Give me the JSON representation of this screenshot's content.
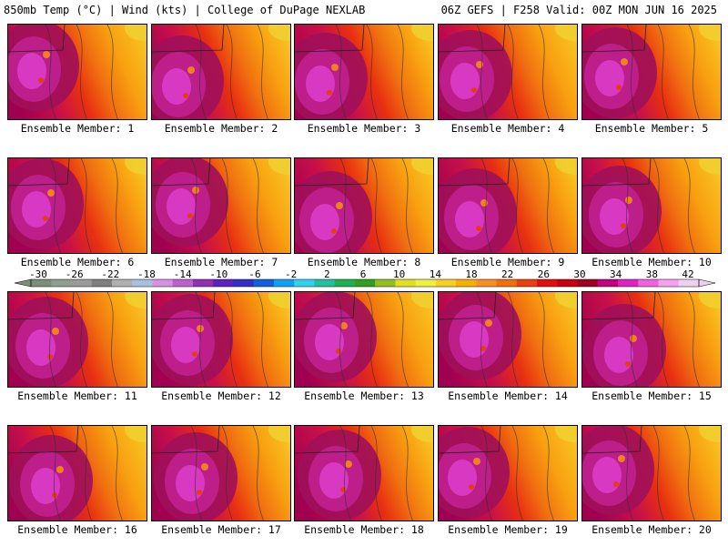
{
  "header": {
    "left": "850mb Temp (°C) | Wind (kts) | College of DuPage NEXLAB",
    "right": "06Z GEFS | F258 Valid: 00Z MON JUN 16 2025"
  },
  "members": [
    {
      "label": "Ensemble Member: 1"
    },
    {
      "label": "Ensemble Member: 2"
    },
    {
      "label": "Ensemble Member: 3"
    },
    {
      "label": "Ensemble Member: 4"
    },
    {
      "label": "Ensemble Member: 5"
    },
    {
      "label": "Ensemble Member: 6"
    },
    {
      "label": "Ensemble Member: 7"
    },
    {
      "label": "Ensemble Member: 8"
    },
    {
      "label": "Ensemble Member: 9"
    },
    {
      "label": "Ensemble Member: 10"
    },
    {
      "label": "Ensemble Member: 11"
    },
    {
      "label": "Ensemble Member: 12"
    },
    {
      "label": "Ensemble Member: 13"
    },
    {
      "label": "Ensemble Member: 14"
    },
    {
      "label": "Ensemble Member: 15"
    },
    {
      "label": "Ensemble Member: 16"
    },
    {
      "label": "Ensemble Member: 17"
    },
    {
      "label": "Ensemble Member: 18"
    },
    {
      "label": "Ensemble Member: 19"
    },
    {
      "label": "Ensemble Member: 20"
    }
  ],
  "colorbar": {
    "ticks": [
      "-30",
      "-26",
      "-22",
      "-18",
      "-14",
      "-10",
      "-6",
      "-2",
      "2",
      "6",
      "10",
      "14",
      "18",
      "22",
      "26",
      "30",
      "34",
      "38",
      "42"
    ],
    "colors": [
      "#7a8e7a",
      "#8f9f8f",
      "#9a9a9a",
      "#7f7f7f",
      "#b0b0b0",
      "#a8c0e0",
      "#d890e0",
      "#c060d0",
      "#9030b0",
      "#6020c0",
      "#3030c8",
      "#1060e0",
      "#10a0f0",
      "#30d0f0",
      "#20c0a0",
      "#20b050",
      "#30a020",
      "#90c020",
      "#e0e020",
      "#f0f040",
      "#f8d020",
      "#f8b000",
      "#f89020",
      "#f07010",
      "#e84010",
      "#e01010",
      "#c80010",
      "#a00020",
      "#c00080",
      "#e020c0",
      "#f060e0",
      "#f8a0f0",
      "#f0d0f0"
    ]
  }
}
